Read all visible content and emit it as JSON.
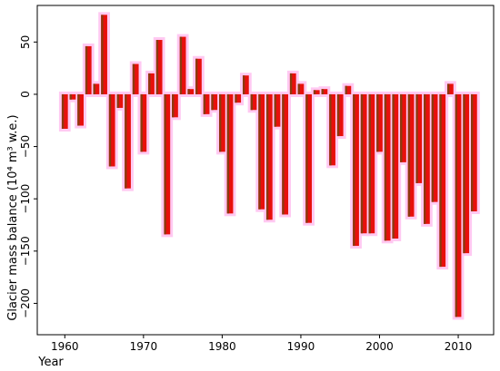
{
  "chart_data": {
    "type": "bar",
    "xlabel": "Year",
    "ylabel": "Glacier mass balance",
    "ylabel_units": "(10⁴ m³ w.e.)",
    "xlim": [
      1956.5,
      2014.5
    ],
    "ylim": [
      -230,
      85
    ],
    "xticks": [
      1960,
      1970,
      1980,
      1990,
      2000,
      2010
    ],
    "yticks": [
      50,
      0,
      -50,
      -100,
      -150,
      -200
    ],
    "grid": false,
    "legend": "none",
    "colors": {
      "bar_fill": "#e8100c",
      "bar_edge": "#8b3a0e",
      "halo": "#ffc9f2"
    },
    "x": [
      1960,
      1961,
      1962,
      1963,
      1964,
      1965,
      1966,
      1967,
      1968,
      1969,
      1970,
      1971,
      1972,
      1973,
      1974,
      1975,
      1976,
      1977,
      1978,
      1979,
      1980,
      1981,
      1982,
      1983,
      1984,
      1985,
      1986,
      1987,
      1988,
      1989,
      1990,
      1991,
      1992,
      1993,
      1994,
      1995,
      1996,
      1997,
      1998,
      1999,
      2000,
      2001,
      2002,
      2003,
      2004,
      2005,
      2006,
      2007,
      2008,
      2009,
      2010,
      2011,
      2012
    ],
    "values": [
      -33,
      -5,
      -30,
      46,
      10,
      76,
      -69,
      -13,
      -90,
      29,
      -55,
      20,
      52,
      -134,
      -22,
      55,
      5,
      34,
      -19,
      -15,
      -55,
      -114,
      -8,
      18,
      -15,
      -110,
      -120,
      -31,
      -115,
      20,
      10,
      -123,
      4,
      5,
      -68,
      -40,
      8,
      -145,
      -133,
      -133,
      -55,
      -140,
      -138,
      -65,
      -117,
      -85,
      -124,
      -103,
      -165,
      10,
      -213,
      -152,
      -112
    ]
  }
}
